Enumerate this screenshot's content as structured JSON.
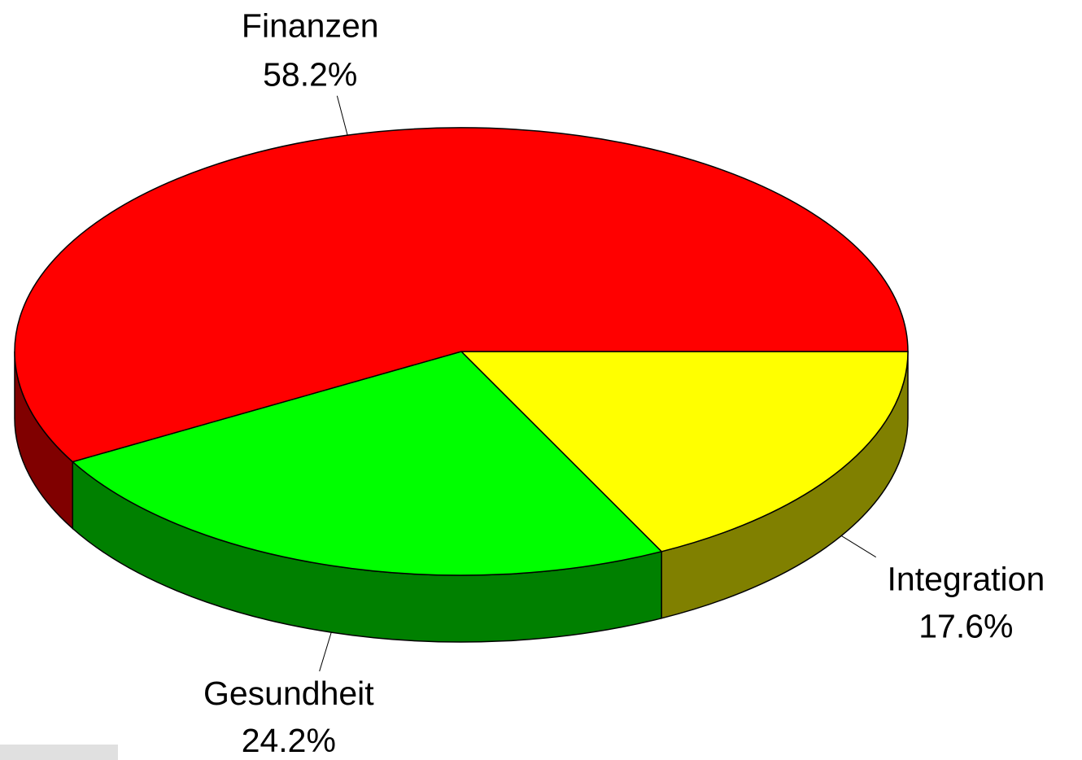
{
  "chart_data": {
    "type": "pie3d",
    "categories": [
      "Integration",
      "Gesundheit",
      "Finanzen"
    ],
    "values": [
      17.6,
      24.2,
      58.2
    ],
    "value_labels": [
      "17.6%",
      "24.2%",
      "58.2%"
    ],
    "colors": [
      "#ffff00",
      "#00ff00",
      "#ff0000"
    ]
  }
}
